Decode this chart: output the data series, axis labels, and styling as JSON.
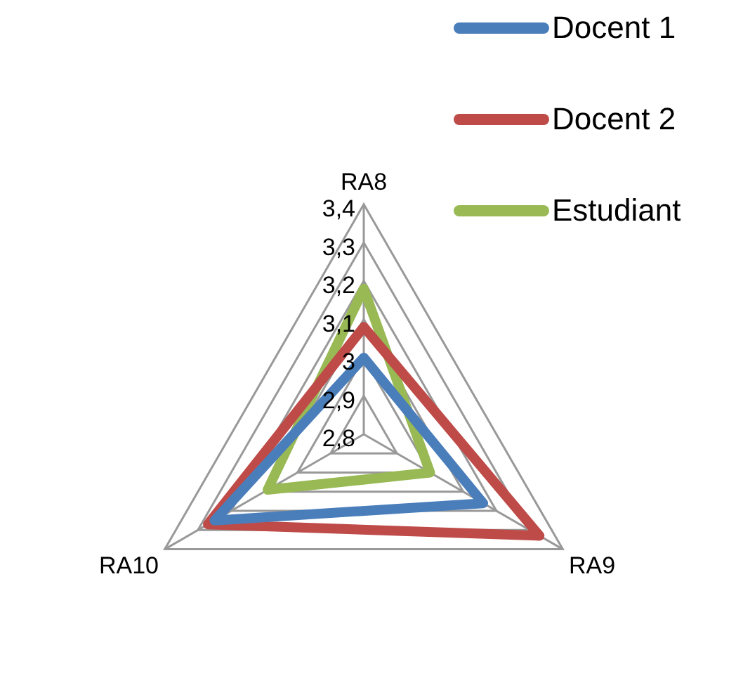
{
  "chart_data": {
    "type": "radar",
    "categories": [
      "RA8",
      "RA9",
      "RA10"
    ],
    "series": [
      {
        "name": "Docent 1",
        "color": "#4a7ebb",
        "values": [
          3.0,
          3.16,
          3.25
        ]
      },
      {
        "name": "Docent 2",
        "color": "#be4b48",
        "values": [
          3.08,
          3.33,
          3.27
        ]
      },
      {
        "name": "Estudiant",
        "color": "#98b954",
        "values": [
          3.18,
          3.0,
          3.09
        ]
      }
    ],
    "ylim": [
      2.8,
      3.4
    ],
    "yticks": [
      {
        "value": 2.8,
        "label": "2,8"
      },
      {
        "value": 2.9,
        "label": "2,9"
      },
      3,
      {
        "value": 3.1,
        "label": "3,1"
      },
      {
        "value": 3.2,
        "label": "3,2"
      },
      {
        "value": 3.3,
        "label": "3,3"
      },
      {
        "value": 3.4,
        "label": "3,4"
      }
    ],
    "grid": true,
    "legend": "top right",
    "marker": "none",
    "line_style": "solid"
  }
}
